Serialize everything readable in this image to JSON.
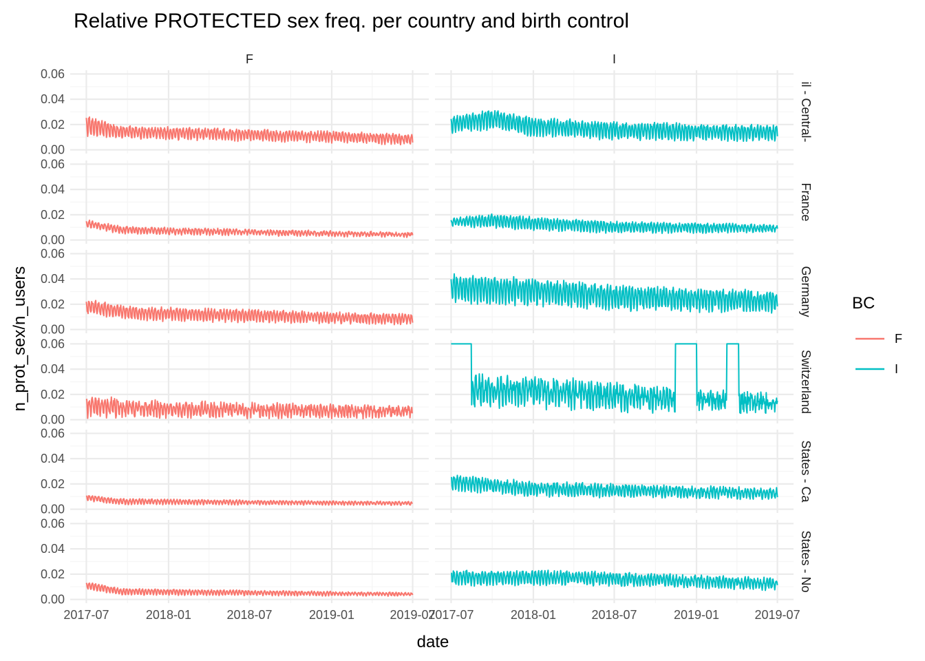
{
  "chart_data": {
    "type": "line",
    "title": "Relative PROTECTED sex freq. per country and birth control",
    "xlabel": "date",
    "ylabel": "n_prot_sex/n_users",
    "x_range": [
      "2017-07-01",
      "2019-07-01"
    ],
    "x_ticks": [
      "2017-07",
      "2018-01",
      "2018-07",
      "2019-01",
      "2019-07"
    ],
    "ylim": [
      0,
      0.06
    ],
    "y_ticks": [
      "0.00",
      "0.02",
      "0.04",
      "0.06"
    ],
    "grid": true,
    "facet_columns": [
      "F",
      "I"
    ],
    "facet_rows": [
      "il - Central-",
      "France",
      "Germany",
      "Switzerland",
      "States - Ca",
      "States - No"
    ],
    "legend": {
      "title": "BC",
      "position": "right",
      "entries": [
        {
          "label": "F",
          "color": "#F8766D"
        },
        {
          "label": "I",
          "color": "#00BFC4"
        }
      ]
    },
    "series_description": "Daily time series (approx.) per facet panel; values read off the axes as [date, value] anchor points with a weekly oscillation amplitude and a noise level.",
    "panels": [
      {
        "row": "il - Central-",
        "col": "F",
        "color": "#F8766D",
        "trend": [
          [
            "2017-07-01",
            0.019
          ],
          [
            "2017-09-15",
            0.014
          ],
          [
            "2018-01-01",
            0.013
          ],
          [
            "2019-01-01",
            0.01
          ],
          [
            "2019-07-01",
            0.008
          ]
        ],
        "amplitude": [
          [
            "2017-07-01",
            0.009
          ],
          [
            "2017-09-15",
            0.005
          ],
          [
            "2019-07-01",
            0.004
          ]
        ],
        "noise": 0.0015,
        "seed": 11
      },
      {
        "row": "il - Central-",
        "col": "I",
        "color": "#00BFC4",
        "trend": [
          [
            "2017-07-01",
            0.02
          ],
          [
            "2017-10-01",
            0.024
          ],
          [
            "2018-01-01",
            0.018
          ],
          [
            "2018-07-01",
            0.015
          ],
          [
            "2019-07-01",
            0.013
          ]
        ],
        "amplitude": [
          [
            "2017-07-01",
            0.007
          ],
          [
            "2017-10-01",
            0.008
          ],
          [
            "2019-07-01",
            0.006
          ]
        ],
        "noise": 0.002,
        "seed": 12
      },
      {
        "row": "France",
        "col": "F",
        "color": "#F8766D",
        "trend": [
          [
            "2017-07-01",
            0.013
          ],
          [
            "2017-09-15",
            0.008
          ],
          [
            "2018-01-01",
            0.007
          ],
          [
            "2019-07-01",
            0.004
          ]
        ],
        "amplitude": [
          [
            "2017-07-01",
            0.003
          ],
          [
            "2019-07-01",
            0.0015
          ]
        ],
        "noise": 0.001,
        "seed": 21
      },
      {
        "row": "France",
        "col": "I",
        "color": "#00BFC4",
        "trend": [
          [
            "2017-07-01",
            0.014
          ],
          [
            "2017-10-01",
            0.015
          ],
          [
            "2018-01-01",
            0.013
          ],
          [
            "2018-07-01",
            0.01
          ],
          [
            "2019-07-01",
            0.009
          ]
        ],
        "amplitude": [
          [
            "2017-07-01",
            0.003
          ],
          [
            "2017-10-01",
            0.006
          ],
          [
            "2019-07-01",
            0.003
          ]
        ],
        "noise": 0.0012,
        "seed": 22
      },
      {
        "row": "Germany",
        "col": "F",
        "color": "#F8766D",
        "trend": [
          [
            "2017-07-01",
            0.018
          ],
          [
            "2017-10-01",
            0.013
          ],
          [
            "2018-01-01",
            0.012
          ],
          [
            "2019-07-01",
            0.008
          ]
        ],
        "amplitude": [
          [
            "2017-07-01",
            0.006
          ],
          [
            "2019-07-01",
            0.004
          ]
        ],
        "noise": 0.0015,
        "seed": 31
      },
      {
        "row": "Germany",
        "col": "I",
        "color": "#00BFC4",
        "trend": [
          [
            "2017-07-01",
            0.032
          ],
          [
            "2018-01-01",
            0.03
          ],
          [
            "2018-07-01",
            0.025
          ],
          [
            "2019-07-01",
            0.022
          ]
        ],
        "amplitude": [
          [
            "2017-07-01",
            0.012
          ],
          [
            "2019-07-01",
            0.008
          ]
        ],
        "noise": 0.003,
        "seed": 32
      },
      {
        "row": "Switzerland",
        "col": "F",
        "color": "#F8766D",
        "trend": [
          [
            "2017-07-01",
            0.01
          ],
          [
            "2018-01-01",
            0.008
          ],
          [
            "2019-07-01",
            0.006
          ]
        ],
        "amplitude": [
          [
            "2017-07-01",
            0.009
          ],
          [
            "2017-10-01",
            0.006
          ],
          [
            "2019-07-01",
            0.003
          ]
        ],
        "noise": 0.003,
        "seed": 41
      },
      {
        "row": "Switzerland",
        "col": "I",
        "color": "#00BFC4",
        "trend": [
          [
            "2017-07-01",
            0.022
          ],
          [
            "2018-01-01",
            0.022
          ],
          [
            "2018-07-01",
            0.018
          ],
          [
            "2019-07-01",
            0.012
          ]
        ],
        "amplitude": [
          [
            "2017-07-01",
            0.012
          ],
          [
            "2019-07-01",
            0.005
          ]
        ],
        "noise": 0.006,
        "seed": 42,
        "clipped_at_top": [
          [
            "2017-07-01",
            "2017-08-15"
          ],
          [
            "2018-11-15",
            "2019-01-01"
          ],
          [
            "2019-03-10",
            "2019-04-05"
          ]
        ]
      },
      {
        "row": "States - Ca",
        "col": "F",
        "color": "#F8766D",
        "trend": [
          [
            "2017-07-01",
            0.009
          ],
          [
            "2017-09-15",
            0.006
          ],
          [
            "2019-07-01",
            0.0045
          ]
        ],
        "amplitude": [
          [
            "2017-07-01",
            0.0025
          ],
          [
            "2019-07-01",
            0.0012
          ]
        ],
        "noise": 0.0006,
        "seed": 51
      },
      {
        "row": "States - Ca",
        "col": "I",
        "color": "#00BFC4",
        "trend": [
          [
            "2017-07-01",
            0.021
          ],
          [
            "2018-01-01",
            0.016
          ],
          [
            "2019-07-01",
            0.012
          ]
        ],
        "amplitude": [
          [
            "2017-07-01",
            0.006
          ],
          [
            "2019-07-01",
            0.004
          ]
        ],
        "noise": 0.002,
        "seed": 52
      },
      {
        "row": "States - No",
        "col": "F",
        "color": "#F8766D",
        "trend": [
          [
            "2017-07-01",
            0.011
          ],
          [
            "2017-09-15",
            0.006
          ],
          [
            "2019-07-01",
            0.004
          ]
        ],
        "amplitude": [
          [
            "2017-07-01",
            0.003
          ],
          [
            "2019-07-01",
            0.0012
          ]
        ],
        "noise": 0.0006,
        "seed": 61
      },
      {
        "row": "States - No",
        "col": "I",
        "color": "#00BFC4",
        "trend": [
          [
            "2017-07-01",
            0.017
          ],
          [
            "2018-04-01",
            0.017
          ],
          [
            "2019-07-01",
            0.012
          ]
        ],
        "amplitude": [
          [
            "2017-07-01",
            0.006
          ],
          [
            "2019-07-01",
            0.004
          ]
        ],
        "noise": 0.002,
        "seed": 62
      }
    ]
  }
}
